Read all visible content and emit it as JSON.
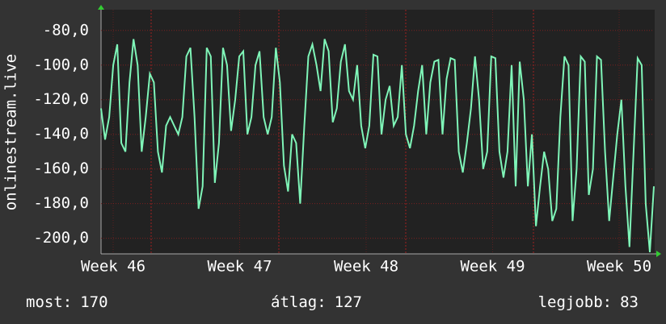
{
  "chart_data": {
    "type": "line",
    "ylabel": "onlinestream.live",
    "x_labels": [
      "Week 46",
      "Week 47",
      "Week 48",
      "Week 49",
      "Week 50"
    ],
    "ylim": [
      -209,
      -68
    ],
    "yticks": [
      {
        "value": -80,
        "label": "-80,0"
      },
      {
        "value": -100,
        "label": "-100,0"
      },
      {
        "value": -120,
        "label": "-120,0"
      },
      {
        "value": -140,
        "label": "-140,0"
      },
      {
        "value": -160,
        "label": "-160,0"
      },
      {
        "value": -180,
        "label": "-180,0"
      },
      {
        "value": -200,
        "label": "-200,0"
      }
    ],
    "grid": true,
    "series": [
      {
        "color": "#7ff5b8",
        "values": [
          -125,
          -143,
          -130,
          -100,
          -88,
          -145,
          -150,
          -110,
          -85,
          -100,
          -150,
          -130,
          -105,
          -110,
          -150,
          -162,
          -135,
          -130,
          -135,
          -140,
          -130,
          -95,
          -90,
          -130,
          -183,
          -170,
          -90,
          -95,
          -168,
          -145,
          -90,
          -100,
          -138,
          -120,
          -95,
          -92,
          -140,
          -130,
          -100,
          -92,
          -130,
          -140,
          -130,
          -90,
          -110,
          -158,
          -173,
          -140,
          -145,
          -180,
          -135,
          -95,
          -88,
          -100,
          -115,
          -85,
          -92,
          -133,
          -125,
          -98,
          -88,
          -115,
          -120,
          -100,
          -135,
          -148,
          -135,
          -94,
          -95,
          -140,
          -120,
          -112,
          -135,
          -130,
          -100,
          -140,
          -148,
          -135,
          -115,
          -100,
          -140,
          -110,
          -98,
          -97,
          -140,
          -108,
          -96,
          -97,
          -150,
          -162,
          -145,
          -125,
          -95,
          -120,
          -160,
          -150,
          -95,
          -96,
          -150,
          -165,
          -150,
          -100,
          -170,
          -98,
          -120,
          -170,
          -140,
          -193,
          -170,
          -150,
          -160,
          -190,
          -183,
          -130,
          -95,
          -100,
          -190,
          -160,
          -95,
          -98,
          -175,
          -160,
          -95,
          -97,
          -150,
          -190,
          -165,
          -140,
          -120,
          -170,
          -205,
          -150,
          -96,
          -100,
          -180,
          -208,
          -170
        ]
      }
    ],
    "stats": [
      {
        "label": "most:",
        "value": 170
      },
      {
        "label": "átlag:",
        "value": 127
      },
      {
        "label": "legjobb:",
        "value": 83
      }
    ]
  }
}
